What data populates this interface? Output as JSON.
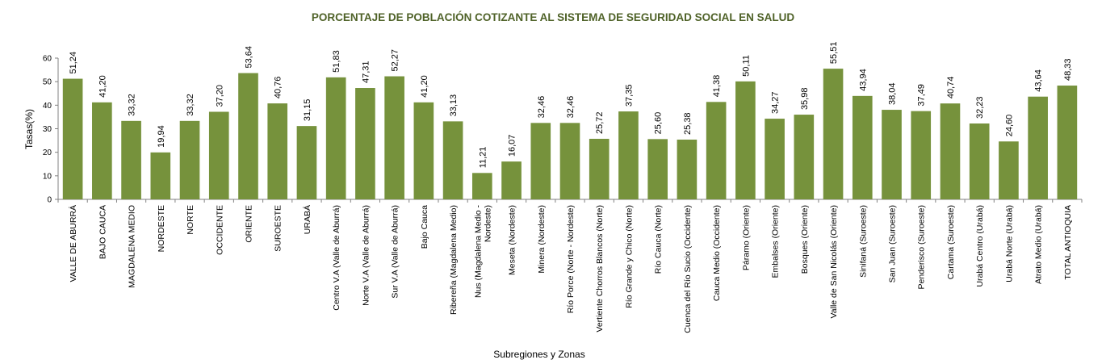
{
  "chart_data": {
    "type": "bar",
    "title": "PORCENTAJE DE POBLACIÓN COTIZANTE AL  SISTEMA DE SEGURIDAD SOCIAL EN SALUD",
    "xlabel": "Subregiones y Zonas",
    "ylabel": "Tasas(%)",
    "ylim": [
      0,
      60
    ],
    "yticks": [
      "0",
      "10",
      "20",
      "30",
      "40",
      "50",
      "60"
    ],
    "grid": false,
    "legend": "none",
    "bar_color": "#76923C",
    "categories": [
      "VALLE DE ABURRÁ",
      "BAJO CAUCA",
      "MAGDALENA MEDIO",
      "NORDESTE",
      "NORTE",
      "OCCIDENTE",
      "ORIENTE",
      "SUROESTE",
      "URABÁ",
      "Centro V.A (Valle de Aburrá)",
      "Norte V.A (Valle de Aburrá)",
      "Sur V.A (Valle de Aburrá)",
      "Bajo Cauca",
      "Ribereña  (Magdalena Medio)",
      "Nus  (Magdalena Medio - Nordeste)",
      "Meseta  (Nordeste)",
      "Minera  (Nordeste)",
      "Río Porce  (Norte - Nordeste)",
      "Vertiente Chorros Blancos  (Norte)",
      "Río Grande y Chico  (Norte)",
      "Río Cauca  (Norte)",
      "Cuenca del Río Sucio  (Occidente)",
      "Cauca Medio  (Occidente)",
      "Páramo  (Oriente)",
      "Embalses  (Oriente)",
      "Bosques  (Oriente)",
      "Valle de San Nicolás  (Oriente)",
      "Sinifaná  (Suroeste)",
      "San Juan  (Suroeste)",
      "Penderisco  (Suroeste)",
      "Cartama  (Suroeste)",
      "Urabá Centro  (Urabá)",
      "Urabá Norte  (Urabá)",
      "Atrato Medio  (Urabá)",
      "TOTAL ANTIOQUIA"
    ],
    "category_lines": [
      [
        "VALLE DE ABURRÁ"
      ],
      [
        "BAJO CAUCA"
      ],
      [
        "MAGDALENA MEDIO"
      ],
      [
        "NORDESTE"
      ],
      [
        "NORTE"
      ],
      [
        "OCCIDENTE"
      ],
      [
        "ORIENTE"
      ],
      [
        "SUROESTE"
      ],
      [
        "URABÁ"
      ],
      [
        "Centro V.A (Valle de Aburrá)"
      ],
      [
        "Norte V.A (Valle de Aburrá)"
      ],
      [
        "Sur V.A (Valle de Aburrá)"
      ],
      [
        "Bajo Cauca"
      ],
      [
        "Ribereña  (Magdalena Medio)"
      ],
      [
        "Nus  (Magdalena Medio -",
        "Nordeste)"
      ],
      [
        "Meseta  (Nordeste)"
      ],
      [
        "Minera  (Nordeste)"
      ],
      [
        "Río Porce  (Norte - Nordeste)"
      ],
      [
        "Vertiente Chorros Blancos  (Norte)"
      ],
      [
        "Río Grande y Chico  (Norte)"
      ],
      [
        "Río Cauca  (Norte)"
      ],
      [
        "Cuenca del Río Sucio  (Occidente)"
      ],
      [
        "Cauca Medio  (Occidente)"
      ],
      [
        "Páramo  (Oriente)"
      ],
      [
        "Embalses  (Oriente)"
      ],
      [
        "Bosques  (Oriente)"
      ],
      [
        "Valle de San Nicolás  (Oriente)"
      ],
      [
        "Sinifaná  (Suroeste)"
      ],
      [
        "San Juan  (Suroeste)"
      ],
      [
        "Penderisco  (Suroeste)"
      ],
      [
        "Cartama  (Suroeste)"
      ],
      [
        "Urabá Centro  (Urabá)"
      ],
      [
        "Urabá Norte  (Urabá)"
      ],
      [
        "Atrato Medio  (Urabá)"
      ],
      [
        "TOTAL ANTIOQUIA"
      ]
    ],
    "values": [
      51.24,
      41.2,
      33.32,
      19.94,
      33.32,
      37.2,
      53.64,
      40.76,
      31.15,
      51.83,
      47.31,
      52.27,
      41.2,
      33.13,
      11.21,
      16.07,
      32.46,
      32.46,
      25.72,
      37.35,
      25.6,
      25.38,
      41.38,
      50.11,
      34.27,
      35.98,
      55.51,
      43.94,
      38.04,
      37.49,
      40.74,
      32.23,
      24.6,
      43.64,
      48.33
    ],
    "value_labels": [
      "51,24",
      "41,20",
      "33,32",
      "19,94",
      "33,32",
      "37,20",
      "53,64",
      "40,76",
      "31,15",
      "51,83",
      "47,31",
      "52,27",
      "41,20",
      "33,13",
      "11,21",
      "16,07",
      "32,46",
      "32,46",
      "25,72",
      "37,35",
      "25,60",
      "25,38",
      "41,38",
      "50,11",
      "34,27",
      "35,98",
      "55,51",
      "43,94",
      "38,04",
      "37,49",
      "40,74",
      "32,23",
      "24,60",
      "43,64",
      "48,33"
    ]
  }
}
